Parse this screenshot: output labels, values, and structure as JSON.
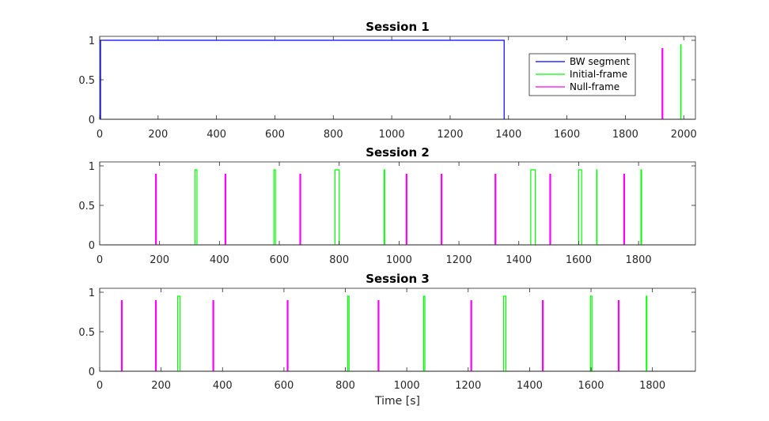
{
  "colors": {
    "bw": "#0000ff",
    "initial": "#00ff00",
    "null": "#ff00ff",
    "baseline": "#000000",
    "axis": "#262626"
  },
  "xlabel": "Time [s]",
  "legend": {
    "placement": "upper-right",
    "entries": [
      "BW segment",
      "Initial-frame",
      "Null-frame"
    ]
  },
  "chart_data": [
    {
      "type": "line",
      "title": "Session 1",
      "xlim": [
        0,
        2040
      ],
      "ylim": [
        0,
        1.05
      ],
      "xticks": [
        "0",
        "200",
        "400",
        "600",
        "800",
        "1000",
        "1200",
        "1400",
        "1600",
        "1800",
        "2000"
      ],
      "yticks": [
        "0",
        "0.5",
        "1"
      ],
      "show_legend": true,
      "series": [
        {
          "name": "BW segment",
          "kind": "segment",
          "level": 1,
          "start": 3,
          "end": 1385
        },
        {
          "name": "Initial-frame",
          "kind": "pulse",
          "level": 0.95,
          "events": [
            1990
          ]
        },
        {
          "name": "Null-frame",
          "kind": "pulse",
          "level": 0.9,
          "events": [
            1927
          ]
        }
      ]
    },
    {
      "type": "line",
      "title": "Session 2",
      "xlim": [
        0,
        1990
      ],
      "ylim": [
        0,
        1.05
      ],
      "xticks": [
        "0",
        "200",
        "400",
        "600",
        "800",
        "1000",
        "1200",
        "1400",
        "1600",
        "1800"
      ],
      "yticks": [
        "0",
        "0.5",
        "1"
      ],
      "show_legend": false,
      "series": [
        {
          "name": "Initial-frame",
          "kind": "pulse",
          "level": 0.95,
          "events": [
            [
              318,
              325
            ],
            [
              582,
              587
            ],
            [
              786,
              800
            ],
            [
              950,
              952
            ],
            [
              1440,
              1455
            ],
            [
              1600,
              1610
            ],
            [
              1660,
              1661
            ],
            [
              1808,
              1810
            ]
          ]
        },
        {
          "name": "Null-frame",
          "kind": "pulse",
          "level": 0.9,
          "events": [
            188,
            420,
            670,
            1025,
            1142,
            1322,
            1505,
            1752
          ]
        }
      ]
    },
    {
      "type": "line",
      "title": "Session 3",
      "xlim": [
        0,
        1940
      ],
      "ylim": [
        0,
        1.05
      ],
      "xticks": [
        "0",
        "200",
        "400",
        "600",
        "800",
        "1000",
        "1200",
        "1400",
        "1600",
        "1800"
      ],
      "yticks": [
        "0",
        "0.5",
        "1"
      ],
      "show_legend": false,
      "series": [
        {
          "name": "Initial-frame",
          "kind": "pulse",
          "level": 0.95,
          "events": [
            [
              254,
              262
            ],
            [
              808,
              812
            ],
            [
              1055,
              1059
            ],
            [
              1315,
              1323
            ],
            [
              1598,
              1603
            ],
            [
              1780,
              1782
            ]
          ]
        },
        {
          "name": "Null-frame",
          "kind": "pulse",
          "level": 0.9,
          "events": [
            72,
            183,
            370,
            612,
            908,
            1210,
            1443,
            1690
          ]
        }
      ]
    }
  ]
}
